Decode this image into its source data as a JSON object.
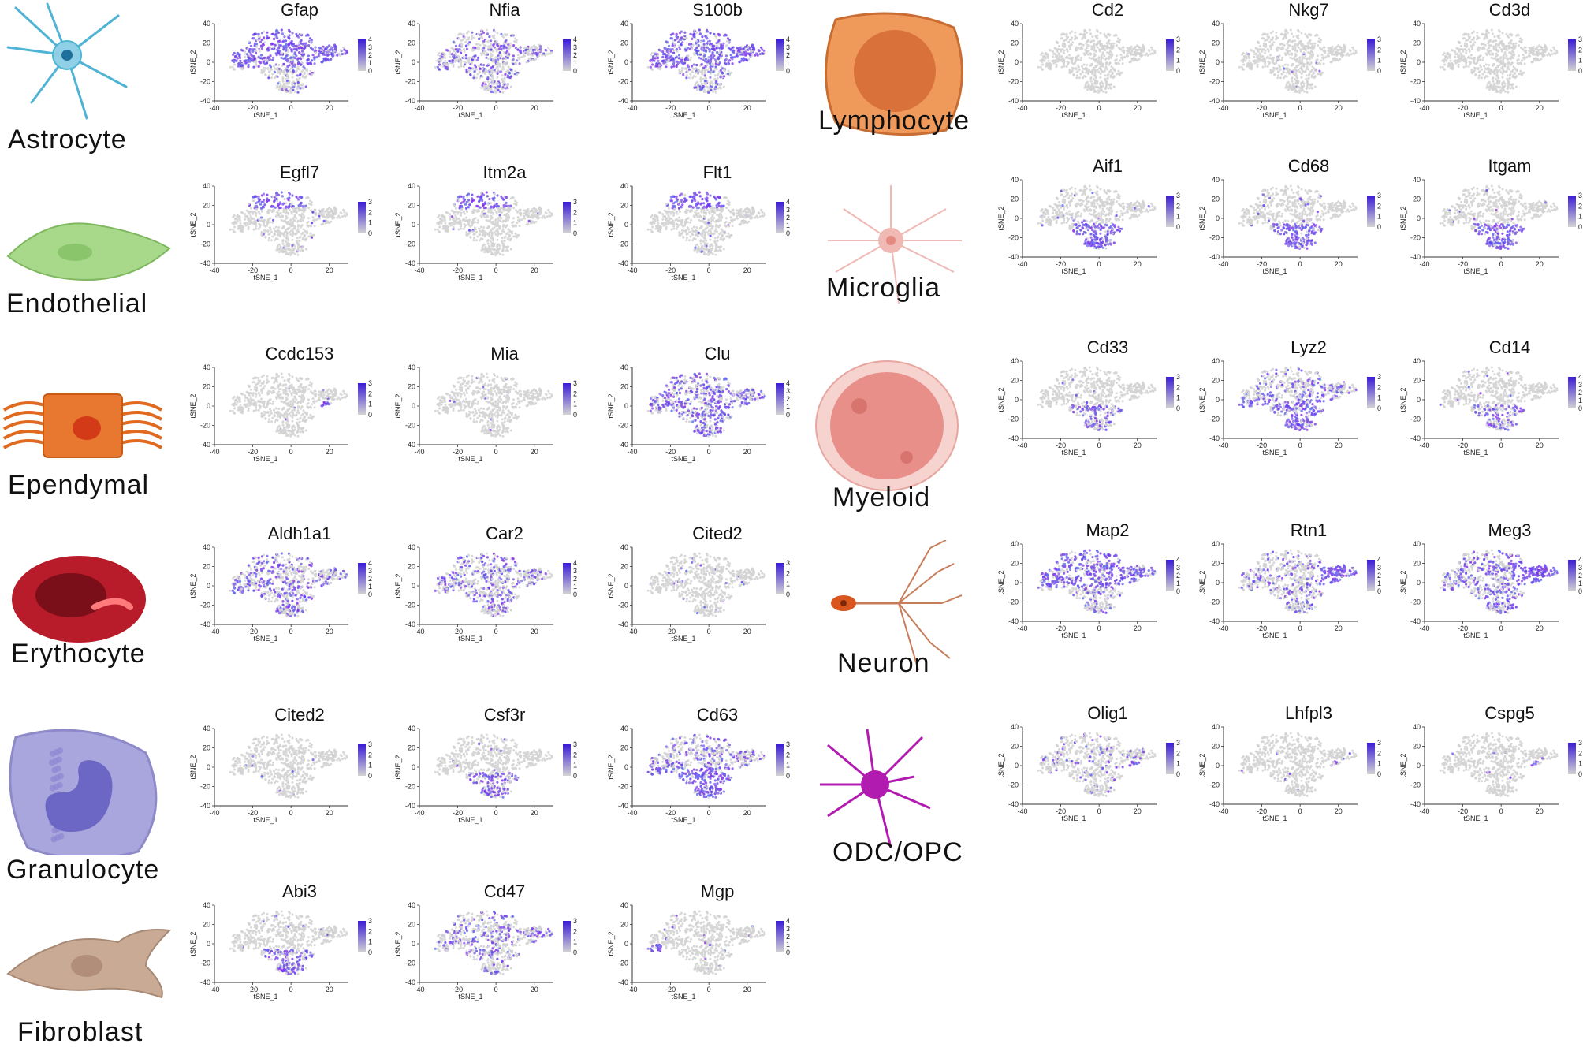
{
  "figure": {
    "cell_types": [
      {
        "name": "Astrocyte",
        "illustration": "astrocyte-cell-icon",
        "color": "#4fb3d4",
        "markers": [
          {
            "gene": "Gfap",
            "scale_max": 4,
            "pattern": "broad-upper",
            "intensity": 0.9
          },
          {
            "gene": "Nfia",
            "scale_max": 4,
            "pattern": "broad",
            "intensity": 0.55
          },
          {
            "gene": "S100b",
            "scale_max": 4,
            "pattern": "broad-upper",
            "intensity": 0.85
          }
        ]
      },
      {
        "name": "Endothelial",
        "illustration": "endothelial-cell-icon",
        "color": "#a8d88a",
        "markers": [
          {
            "gene": "Egfl7",
            "scale_max": 3,
            "pattern": "top-cluster",
            "intensity": 0.9
          },
          {
            "gene": "Itm2a",
            "scale_max": 3,
            "pattern": "top-cluster",
            "intensity": 0.9
          },
          {
            "gene": "Flt1",
            "scale_max": 4,
            "pattern": "top-cluster",
            "intensity": 0.95
          }
        ]
      },
      {
        "name": "Ependymal",
        "illustration": "ependymal-cell-icon",
        "color": "#e8782f",
        "markers": [
          {
            "gene": "Ccdc153",
            "scale_max": 3,
            "pattern": "right-small",
            "intensity": 0.8
          },
          {
            "gene": "Mia",
            "scale_max": 3,
            "pattern": "sparse",
            "intensity": 0.3
          },
          {
            "gene": "Clu",
            "scale_max": 4,
            "pattern": "broad",
            "intensity": 0.85
          }
        ]
      },
      {
        "name": "Erythocyte",
        "illustration": "erythrocyte-cell-icon",
        "color": "#b81c2a",
        "markers": [
          {
            "gene": "Aldh1a1",
            "scale_max": 4,
            "pattern": "broad",
            "intensity": 0.6
          },
          {
            "gene": "Car2",
            "scale_max": 4,
            "pattern": "broad",
            "intensity": 0.55
          },
          {
            "gene": "Cited2",
            "scale_max": 3,
            "pattern": "sparse",
            "intensity": 0.35
          }
        ]
      },
      {
        "name": "Granulocyte",
        "illustration": "granulocyte-cell-icon",
        "color": "#a9a6dd",
        "markers": [
          {
            "gene": "Cited2",
            "scale_max": 3,
            "pattern": "sparse",
            "intensity": 0.35
          },
          {
            "gene": "Csf3r",
            "scale_max": 3,
            "pattern": "bottom-cluster",
            "intensity": 0.6
          },
          {
            "gene": "Cd63",
            "scale_max": 3,
            "pattern": "broad-bottom",
            "intensity": 0.9
          }
        ]
      },
      {
        "name": "Fibroblast",
        "illustration": "fibroblast-cell-icon",
        "color": "#c9aa95",
        "markers": [
          {
            "gene": "Abi3",
            "scale_max": 3,
            "pattern": "bottom-cluster",
            "intensity": 0.6
          },
          {
            "gene": "Cd47",
            "scale_max": 3,
            "pattern": "broad",
            "intensity": 0.5
          },
          {
            "gene": "Mgp",
            "scale_max": 4,
            "pattern": "left-small",
            "intensity": 0.8
          }
        ]
      },
      {
        "name": "Lymphocyte",
        "illustration": "lymphocyte-cell-icon",
        "color": "#ef9a5b",
        "markers": [
          {
            "gene": "Cd2",
            "scale_max": 3,
            "pattern": "none",
            "intensity": 0.05
          },
          {
            "gene": "Nkg7",
            "scale_max": 3,
            "pattern": "sparse",
            "intensity": 0.15
          },
          {
            "gene": "Cd3d",
            "scale_max": 3,
            "pattern": "none",
            "intensity": 0.05
          }
        ]
      },
      {
        "name": "Microglia",
        "illustration": "microglia-cell-icon",
        "color": "#f0b9b4",
        "markers": [
          {
            "gene": "Aif1",
            "scale_max": 3,
            "pattern": "bottom-cluster",
            "intensity": 0.85
          },
          {
            "gene": "Cd68",
            "scale_max": 3,
            "pattern": "bottom-cluster",
            "intensity": 0.9
          },
          {
            "gene": "Itgam",
            "scale_max": 3,
            "pattern": "bottom-cluster",
            "intensity": 0.75
          }
        ]
      },
      {
        "name": "Myeloid",
        "illustration": "myeloid-cell-icon",
        "color": "#e88f8a",
        "markers": [
          {
            "gene": "Cd33",
            "scale_max": 3,
            "pattern": "bottom-cluster",
            "intensity": 0.55
          },
          {
            "gene": "Lyz2",
            "scale_max": 3,
            "pattern": "broad-bottom",
            "intensity": 0.8
          },
          {
            "gene": "Cd14",
            "scale_max": 4,
            "pattern": "bottom-cluster",
            "intensity": 0.55
          }
        ]
      },
      {
        "name": "Neuron",
        "illustration": "neuron-cell-icon",
        "color": "#d9571f",
        "markers": [
          {
            "gene": "Map2",
            "scale_max": 4,
            "pattern": "broad-upper",
            "intensity": 0.8
          },
          {
            "gene": "Rtn1",
            "scale_max": 4,
            "pattern": "right-cluster",
            "intensity": 0.85
          },
          {
            "gene": "Meg3",
            "scale_max": 4,
            "pattern": "right-cluster-strong",
            "intensity": 0.95
          }
        ]
      },
      {
        "name": "ODC/OPC",
        "illustration": "oligodendrocyte-cell-icon",
        "color": "#b21bb0",
        "markers": [
          {
            "gene": "Olig1",
            "scale_max": 3,
            "pattern": "right-small-strong",
            "intensity": 0.8
          },
          {
            "gene": "Lhfpl3",
            "scale_max": 3,
            "pattern": "right-small",
            "intensity": 0.6
          },
          {
            "gene": "Cspg5",
            "scale_max": 3,
            "pattern": "right-small",
            "intensity": 0.6
          }
        ]
      }
    ],
    "axis": {
      "xlabel": "tSNE_1",
      "ylabel": "tSNE_2",
      "xticks": [
        "-40",
        "-20",
        "0",
        "20"
      ],
      "yticks": [
        "40",
        "20",
        "0",
        "-20",
        "-40"
      ]
    }
  },
  "chart_data": {
    "type": "scatter",
    "title": "",
    "xlabel": "tSNE_1",
    "ylabel": "tSNE_2",
    "xlim": [
      -40,
      30
    ],
    "ylim": [
      -40,
      40
    ],
    "color_scale": [
      "#d3d3d3",
      "#3b1bd6"
    ],
    "panels": [
      {
        "cell_type": "Astrocyte",
        "genes": [
          "Gfap",
          "Nfia",
          "S100b"
        ]
      },
      {
        "cell_type": "Endothelial",
        "genes": [
          "Egfl7",
          "Itm2a",
          "Flt1"
        ]
      },
      {
        "cell_type": "Ependymal",
        "genes": [
          "Ccdc153",
          "Mia",
          "Clu"
        ]
      },
      {
        "cell_type": "Erythocyte",
        "genes": [
          "Aldh1a1",
          "Car2",
          "Cited2"
        ]
      },
      {
        "cell_type": "Granulocyte",
        "genes": [
          "Cited2",
          "Csf3r",
          "Cd63"
        ]
      },
      {
        "cell_type": "Fibroblast",
        "genes": [
          "Abi3",
          "Cd47",
          "Mgp"
        ]
      },
      {
        "cell_type": "Lymphocyte",
        "genes": [
          "Cd2",
          "Nkg7",
          "Cd3d"
        ]
      },
      {
        "cell_type": "Microglia",
        "genes": [
          "Aif1",
          "Cd68",
          "Itgam"
        ]
      },
      {
        "cell_type": "Myeloid",
        "genes": [
          "Cd33",
          "Lyz2",
          "Cd14"
        ]
      },
      {
        "cell_type": "Neuron",
        "genes": [
          "Map2",
          "Rtn1",
          "Meg3"
        ]
      },
      {
        "cell_type": "ODC/OPC",
        "genes": [
          "Olig1",
          "Lhfpl3",
          "Cspg5"
        ]
      }
    ]
  }
}
